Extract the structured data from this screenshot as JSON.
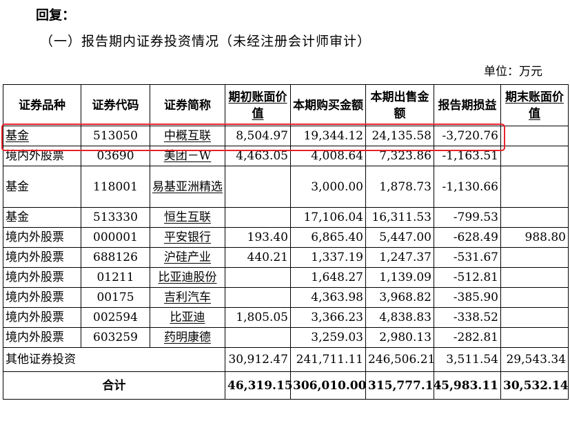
{
  "heading": "回复：",
  "section_title": "（一）报告期内证券投资情况（未经注册会计师审计）",
  "unit": "单位：万元",
  "table": {
    "headers": [
      "证券品种",
      "证券代码",
      "证券简称",
      "期初账面价值",
      "本期购买金额",
      "本期出售金额",
      "报告期损益",
      "期末账面价值"
    ],
    "rows": [
      [
        "基金",
        "513050",
        "中概互联",
        "8,504.97",
        "19,344.12",
        "24,135.58",
        "-3,720.76",
        ""
      ],
      [
        "境内外股票",
        "03690",
        "美团－W",
        "4,463.05",
        "4,008.64",
        "7,323.86",
        "-1,163.51",
        ""
      ],
      [
        "基金",
        "118001",
        "易基亚洲精选",
        "",
        "3,000.00",
        "1,878.73",
        "-1,130.66",
        ""
      ],
      [
        "基金",
        "513330",
        "恒生互联",
        "",
        "17,106.04",
        "16,311.53",
        "-799.53",
        ""
      ],
      [
        "境内外股票",
        "000001",
        "平安银行",
        "193.40",
        "6,865.40",
        "5,447.00",
        "-628.49",
        "988.80"
      ],
      [
        "境内外股票",
        "688126",
        "沪硅产业",
        "440.21",
        "1,337.19",
        "1,247.37",
        "-531.67",
        ""
      ],
      [
        "境内外股票",
        "01211",
        "比亚迪股份",
        "",
        "1,648.27",
        "1,139.09",
        "-512.81",
        ""
      ],
      [
        "境内外股票",
        "00175",
        "吉利汽车",
        "",
        "4,363.98",
        "3,968.82",
        "-385.90",
        ""
      ],
      [
        "境内外股票",
        "002594",
        "比亚迪",
        "1,805.05",
        "3,366.23",
        "4,838.83",
        "-338.52",
        ""
      ],
      [
        "境内外股票",
        "603259",
        "药明康德",
        "",
        "3,259.03",
        "2,980.13",
        "-282.81",
        ""
      ]
    ],
    "other": {
      "label": "其他证券投资",
      "values": [
        "30,912.47",
        "241,711.11",
        "246,506.21",
        "3,511.54",
        "29,543.34"
      ]
    },
    "total": {
      "label": "合计",
      "values": [
        "46,319.15",
        "306,010.00",
        "315,777.14",
        "-5,983.11",
        "30,532.14"
      ]
    }
  },
  "colors": {
    "highlight_box": "#e8202a"
  }
}
